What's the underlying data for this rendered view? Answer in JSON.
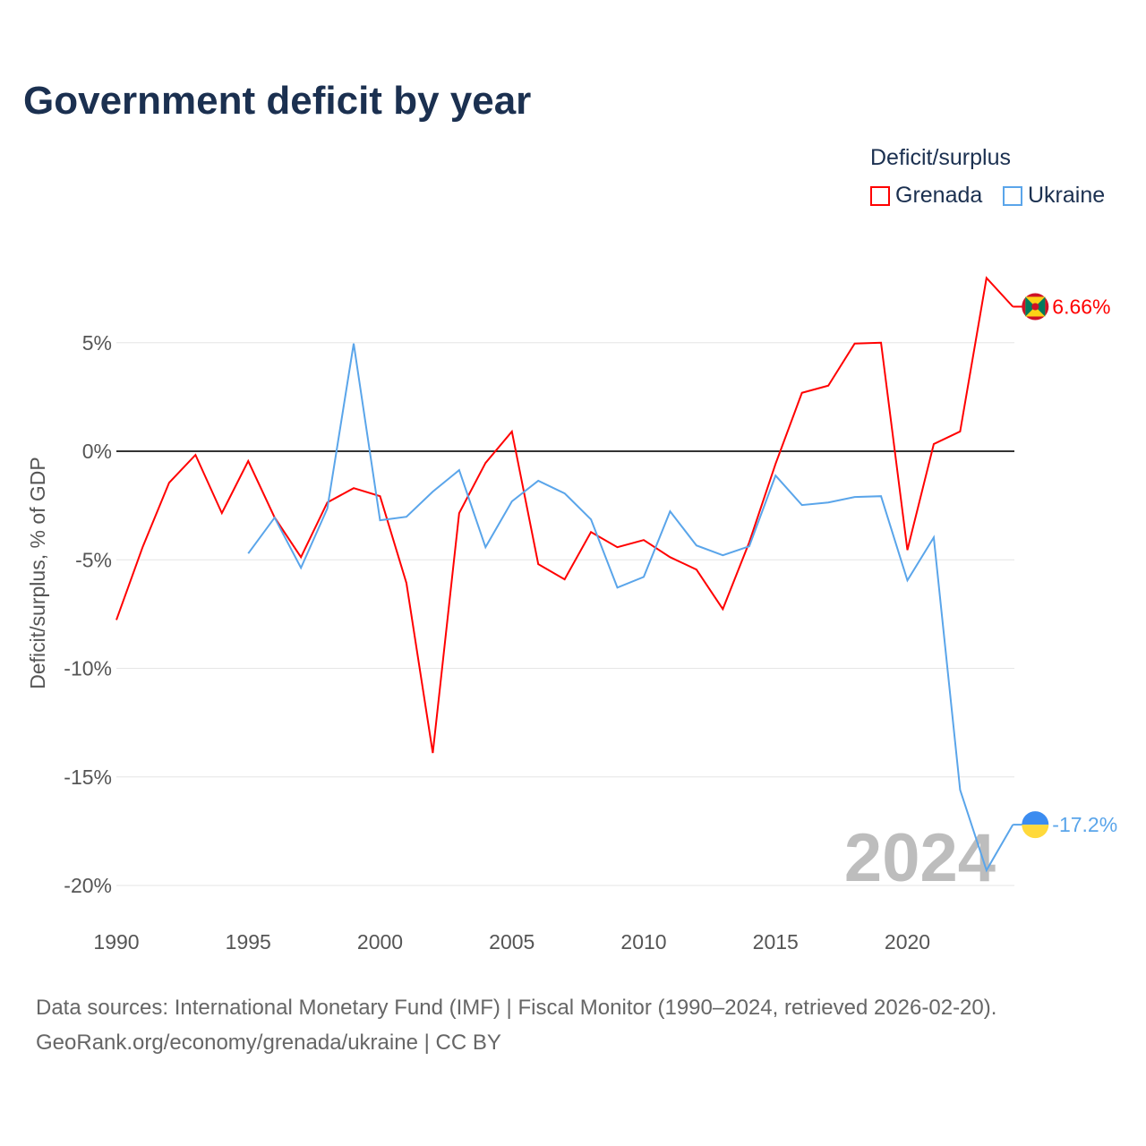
{
  "title": "Government deficit by year",
  "legend": {
    "title": "Deficit/surplus",
    "items": [
      {
        "name": "Grenada",
        "color": "#ff0000"
      },
      {
        "name": "Ukraine",
        "color": "#5aa5ea"
      }
    ]
  },
  "year_watermark": "2024",
  "source_line1": "Data sources: International Monetary Fund (IMF) | Fiscal Monitor (1990–2024, retrieved 2026-02-20).",
  "source_line2": "GeoRank.org/economy/grenada/ukraine | CC BY",
  "chart_data": {
    "type": "line",
    "title": "Government deficit by year",
    "xlabel": "",
    "ylabel": "Deficit/surplus, % of GDP",
    "xlim": [
      1990,
      2024
    ],
    "ylim": [
      -20,
      8
    ],
    "x_ticks": [
      1990,
      1995,
      2000,
      2005,
      2010,
      2015,
      2020
    ],
    "y_ticks": [
      {
        "v": 5,
        "label": "5%"
      },
      {
        "v": 0,
        "label": "0%"
      },
      {
        "v": -5,
        "label": "-5%"
      },
      {
        "v": -10,
        "label": "-10%"
      },
      {
        "v": -15,
        "label": "-15%"
      },
      {
        "v": -20,
        "label": "-20%"
      }
    ],
    "grid": true,
    "legend_position": "top-right",
    "series": [
      {
        "name": "Grenada",
        "color": "#ff0000",
        "end_label": "6.66%",
        "x": [
          1990,
          1991,
          1992,
          1993,
          1994,
          1995,
          1996,
          1997,
          1998,
          1999,
          2000,
          2001,
          2002,
          2003,
          2004,
          2005,
          2006,
          2007,
          2008,
          2009,
          2010,
          2011,
          2012,
          2013,
          2014,
          2015,
          2016,
          2017,
          2018,
          2019,
          2020,
          2021,
          2022,
          2023,
          2024
        ],
        "values": [
          -7.77,
          -4.4,
          -1.45,
          -0.17,
          -2.85,
          -0.45,
          -3.05,
          -4.88,
          -2.36,
          -1.7,
          -2.07,
          -6.07,
          -13.9,
          -2.85,
          -0.54,
          0.91,
          -5.2,
          -5.9,
          -3.72,
          -4.42,
          -4.09,
          -4.88,
          -5.45,
          -7.27,
          -4.2,
          -0.58,
          2.69,
          3.02,
          4.96,
          5.0,
          -4.55,
          0.33,
          0.91,
          7.98,
          6.66
        ]
      },
      {
        "name": "Ukraine",
        "color": "#5aa5ea",
        "end_label": "-17.2%",
        "x": [
          1995,
          1996,
          1997,
          1998,
          1999,
          2000,
          2001,
          2002,
          2003,
          2004,
          2005,
          2006,
          2007,
          2008,
          2009,
          2010,
          2011,
          2012,
          2013,
          2014,
          2015,
          2016,
          2017,
          2018,
          2019,
          2020,
          2021,
          2022,
          2023,
          2024
        ],
        "values": [
          -4.71,
          -3.06,
          -5.37,
          -2.64,
          4.96,
          -3.18,
          -3.02,
          -1.86,
          -0.87,
          -4.42,
          -2.31,
          -1.36,
          -1.94,
          -3.14,
          -6.28,
          -5.79,
          -2.77,
          -4.34,
          -4.79,
          -4.38,
          -1.12,
          -2.48,
          -2.36,
          -2.11,
          -2.07,
          -5.95,
          -3.97,
          -15.6,
          -19.3,
          -17.2
        ]
      }
    ]
  }
}
